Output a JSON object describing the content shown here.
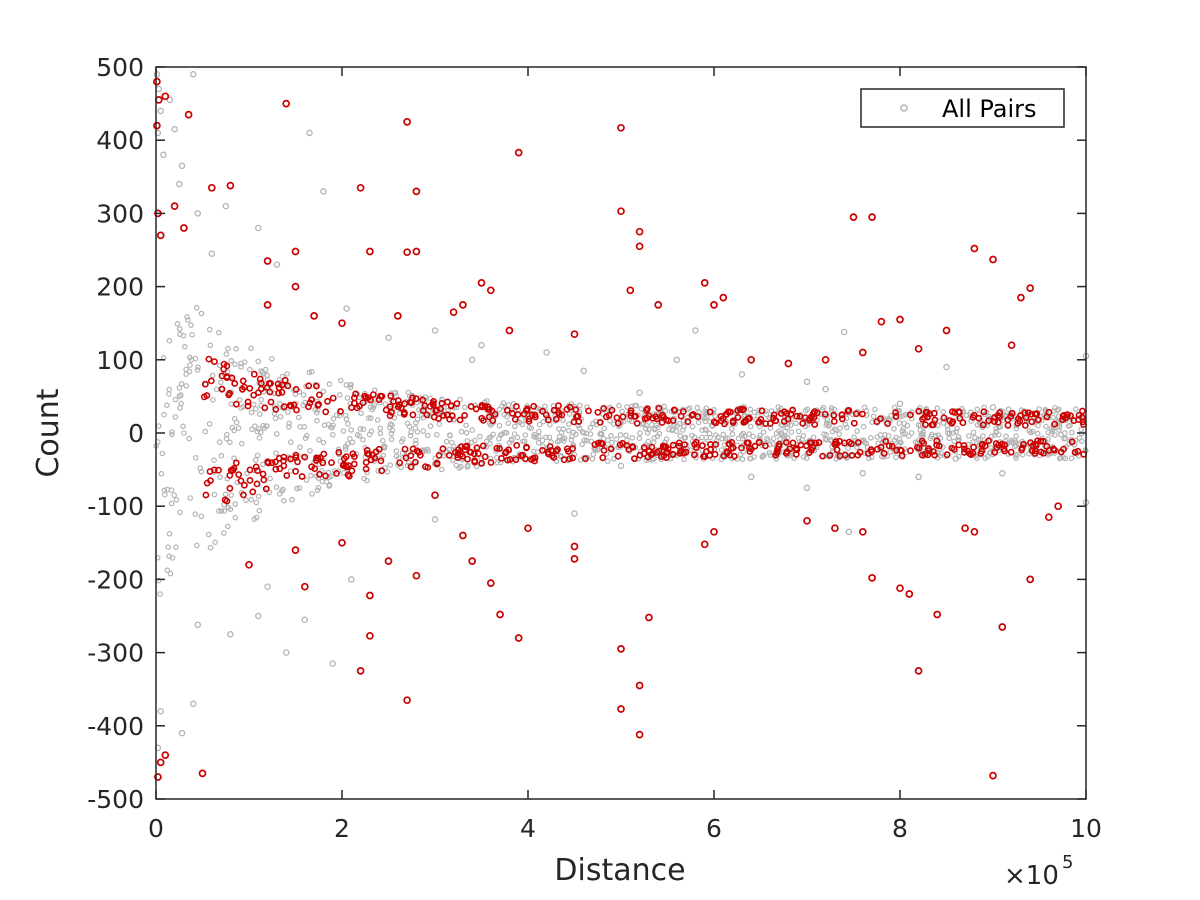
{
  "chart_data": {
    "type": "scatter",
    "title": "",
    "xlabel": "Distance",
    "ylabel": "Count",
    "x_exponent_label": {
      "base": "×10",
      "power": "5"
    },
    "xlim": [
      0,
      1000000
    ],
    "ylim": [
      -500,
      500
    ],
    "x_ticks": [
      0,
      200000,
      400000,
      600000,
      800000,
      1000000
    ],
    "x_tick_labels": [
      "0",
      "2",
      "4",
      "6",
      "8",
      "10"
    ],
    "y_ticks": [
      500,
      400,
      300,
      200,
      100,
      0,
      -100,
      -200,
      -300,
      -400,
      -500
    ],
    "y_tick_labels": [
      "500",
      "400",
      "300",
      "200",
      "100",
      "0",
      "-100",
      "-200",
      "-300",
      "-400",
      "-500"
    ],
    "grid": false,
    "legend": {
      "entries": [
        "All Pairs"
      ],
      "position": "top-right"
    },
    "series": [
      {
        "name": "All Pairs",
        "color": "#b3b3b3",
        "marker": "open-circle",
        "points": [
          [
            1000,
            490
          ],
          [
            3000,
            470
          ],
          [
            5000,
            440
          ],
          [
            2000,
            410
          ],
          [
            8000,
            380
          ],
          [
            15000,
            455
          ],
          [
            28000,
            365
          ],
          [
            40000,
            490
          ],
          [
            20000,
            415
          ],
          [
            25000,
            340
          ],
          [
            45000,
            300
          ],
          [
            60000,
            245
          ],
          [
            75000,
            310
          ],
          [
            110000,
            280
          ],
          [
            130000,
            230
          ],
          [
            165000,
            410
          ],
          [
            205000,
            170
          ],
          [
            250000,
            130
          ],
          [
            340000,
            100
          ],
          [
            460000,
            85
          ],
          [
            520000,
            55
          ],
          [
            580000,
            140
          ],
          [
            700000,
            70
          ],
          [
            740000,
            138
          ],
          [
            850000,
            90
          ],
          [
            1000000,
            105
          ],
          [
            1000000,
            -95
          ],
          [
            190000,
            -315
          ],
          [
            210000,
            -200
          ],
          [
            160000,
            -255
          ],
          [
            110000,
            -250
          ],
          [
            80000,
            -275
          ],
          [
            40000,
            -370
          ],
          [
            28000,
            -410
          ],
          [
            5000,
            -380
          ],
          [
            2000,
            -430
          ],
          [
            45000,
            -262
          ],
          [
            120000,
            -210
          ],
          [
            140000,
            -300
          ],
          [
            300000,
            -118
          ],
          [
            450000,
            -110
          ],
          [
            500000,
            -45
          ],
          [
            745000,
            -135
          ],
          [
            760000,
            -55
          ],
          [
            860000,
            -35
          ],
          [
            950000,
            -30
          ],
          [
            180000,
            330
          ],
          [
            300000,
            140
          ],
          [
            350000,
            120
          ],
          [
            420000,
            110
          ],
          [
            560000,
            100
          ],
          [
            630000,
            80
          ],
          [
            720000,
            60
          ],
          [
            800000,
            40
          ],
          [
            900000,
            35
          ],
          [
            640000,
            -60
          ],
          [
            700000,
            -75
          ],
          [
            820000,
            -60
          ],
          [
            910000,
            -55
          ]
        ]
      },
      {
        "name": "",
        "color": "#cc0000",
        "marker": "open-circle",
        "points": [
          [
            1000,
            480
          ],
          [
            3000,
            455
          ],
          [
            10000,
            460
          ],
          [
            1000,
            420
          ],
          [
            35000,
            435
          ],
          [
            140000,
            450
          ],
          [
            270000,
            425
          ],
          [
            500000,
            417
          ],
          [
            390000,
            383
          ],
          [
            220000,
            335
          ],
          [
            280000,
            330
          ],
          [
            60000,
            335
          ],
          [
            80000,
            338
          ],
          [
            750000,
            295
          ],
          [
            770000,
            295
          ],
          [
            500000,
            303
          ],
          [
            520000,
            275
          ],
          [
            520000,
            255
          ],
          [
            880000,
            252
          ],
          [
            900000,
            237
          ],
          [
            230000,
            248
          ],
          [
            270000,
            247
          ],
          [
            280000,
            248
          ],
          [
            150000,
            248
          ],
          [
            350000,
            205
          ],
          [
            360000,
            195
          ],
          [
            510000,
            195
          ],
          [
            540000,
            175
          ],
          [
            590000,
            205
          ],
          [
            610000,
            185
          ],
          [
            600000,
            175
          ],
          [
            780000,
            152
          ],
          [
            800000,
            155
          ],
          [
            940000,
            198
          ],
          [
            930000,
            185
          ],
          [
            150000,
            200
          ],
          [
            120000,
            235
          ],
          [
            2000,
            300
          ],
          [
            5000,
            270
          ],
          [
            20000,
            310
          ],
          [
            30000,
            280
          ],
          [
            2000,
            -470
          ],
          [
            5000,
            -450
          ],
          [
            10000,
            -440
          ],
          [
            50000,
            -465
          ],
          [
            900000,
            -468
          ],
          [
            270000,
            -365
          ],
          [
            500000,
            -377
          ],
          [
            520000,
            -345
          ],
          [
            520000,
            -412
          ],
          [
            500000,
            -295
          ],
          [
            530000,
            -252
          ],
          [
            390000,
            -280
          ],
          [
            220000,
            -325
          ],
          [
            230000,
            -277
          ],
          [
            910000,
            -265
          ],
          [
            820000,
            -325
          ],
          [
            840000,
            -248
          ],
          [
            370000,
            -248
          ],
          [
            360000,
            -205
          ],
          [
            160000,
            -210
          ],
          [
            230000,
            -222
          ],
          [
            280000,
            -195
          ],
          [
            770000,
            -198
          ],
          [
            800000,
            -212
          ],
          [
            810000,
            -220
          ],
          [
            940000,
            -200
          ],
          [
            590000,
            -152
          ],
          [
            600000,
            -135
          ],
          [
            450000,
            -155
          ],
          [
            450000,
            -172
          ],
          [
            330000,
            -140
          ],
          [
            300000,
            -85
          ],
          [
            400000,
            -130
          ],
          [
            700000,
            -120
          ],
          [
            730000,
            -130
          ],
          [
            760000,
            -135
          ],
          [
            870000,
            -130
          ],
          [
            880000,
            -135
          ],
          [
            960000,
            -115
          ],
          [
            970000,
            -100
          ],
          [
            100000,
            -180
          ],
          [
            150000,
            -160
          ],
          [
            200000,
            -150
          ],
          [
            250000,
            -175
          ],
          [
            340000,
            -175
          ],
          [
            120000,
            175
          ],
          [
            170000,
            160
          ],
          [
            200000,
            150
          ],
          [
            260000,
            160
          ],
          [
            320000,
            165
          ],
          [
            330000,
            175
          ],
          [
            380000,
            140
          ],
          [
            450000,
            135
          ],
          [
            640000,
            100
          ],
          [
            680000,
            95
          ],
          [
            720000,
            100
          ],
          [
            760000,
            110
          ],
          [
            820000,
            115
          ],
          [
            850000,
            140
          ],
          [
            920000,
            120
          ]
        ]
      }
    ]
  }
}
